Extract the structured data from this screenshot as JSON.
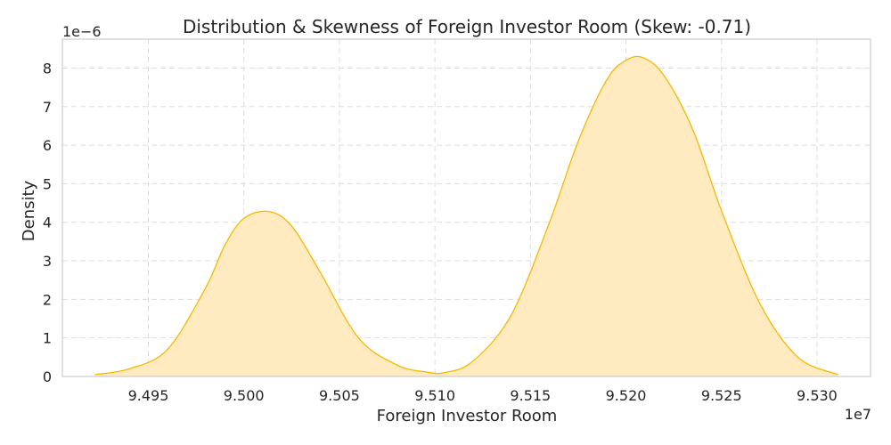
{
  "chart_data": {
    "type": "area",
    "title": "Distribution & Skewness of Foreign Investor Room (Skew: -0.71)",
    "xlabel": "Foreign Investor Room",
    "ylabel": "Density",
    "x_offset_label": "1e7",
    "y_offset_label": "1e−6",
    "xlim": [
      9.4905,
      9.5328
    ],
    "ylim": [
      0,
      8.75
    ],
    "x_ticks": [
      9.495,
      9.5,
      9.505,
      9.51,
      9.515,
      9.52,
      9.525,
      9.53
    ],
    "x_tick_labels": [
      "9.495",
      "9.500",
      "9.505",
      "9.510",
      "9.515",
      "9.520",
      "9.525",
      "9.530"
    ],
    "y_ticks": [
      0,
      1,
      2,
      3,
      4,
      5,
      6,
      7,
      8
    ],
    "y_tick_labels": [
      "0",
      "1",
      "2",
      "3",
      "4",
      "5",
      "6",
      "7",
      "8"
    ],
    "grid": true,
    "colors": {
      "line": "#f5b800",
      "fill": "#ffebbf"
    },
    "series": [
      {
        "x": [
          9.4922,
          9.494,
          9.496,
          9.498,
          9.499,
          9.5,
          9.5013,
          9.5025,
          9.504,
          9.506,
          9.508,
          9.5095,
          9.5105,
          9.512,
          9.514,
          9.516,
          9.5175,
          9.519,
          9.52,
          9.5209,
          9.522,
          9.5235,
          9.525,
          9.527,
          9.529,
          9.5311
        ],
        "y": [
          0.05,
          0.2,
          0.7,
          2.3,
          3.4,
          4.1,
          4.28,
          3.9,
          2.7,
          1.0,
          0.3,
          0.12,
          0.1,
          0.4,
          1.6,
          4.0,
          6.1,
          7.7,
          8.2,
          8.27,
          7.8,
          6.4,
          4.3,
          1.9,
          0.5,
          0.05
        ]
      }
    ]
  }
}
